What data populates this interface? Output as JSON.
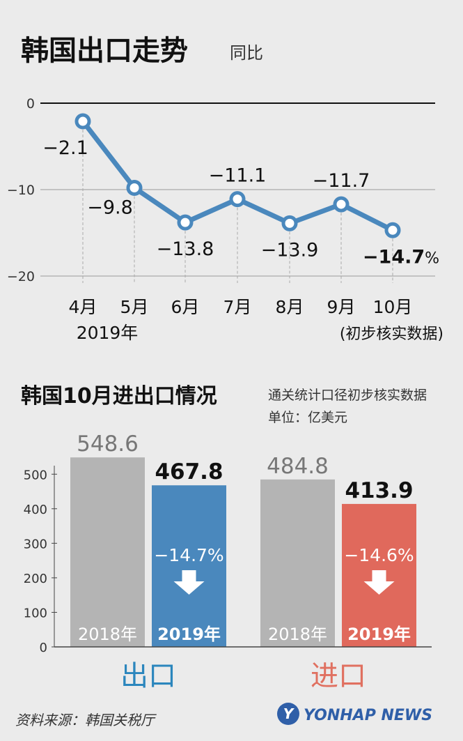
{
  "chart_data": [
    {
      "type": "line",
      "title": "韩国出口走势",
      "subtitle": "同比",
      "categories": [
        "4月",
        "5月",
        "6月",
        "7月",
        "8月",
        "9月",
        "10月"
      ],
      "year_label": "2019年",
      "note": "(初步核实数据)",
      "values": [
        -2.1,
        -9.8,
        -13.8,
        -11.1,
        -13.9,
        -11.7,
        -14.7
      ],
      "value_labels": [
        "−2.1",
        "−9.8",
        "−13.8",
        "−11.1",
        "−13.9",
        "−11.7",
        "−14.7"
      ],
      "last_suffix": "%",
      "ylim": [
        -20,
        0
      ],
      "yticks": [
        0,
        -10,
        -20
      ],
      "ytick_labels": [
        "0",
        "−10",
        "−20"
      ],
      "line_color": "#4a88bd"
    },
    {
      "type": "bar",
      "title": "韩国10月进出口情况",
      "source_note": "通关统计口径初步核实数据",
      "unit": "单位：亿美元",
      "ylim": [
        0,
        550
      ],
      "yticks": [
        0,
        100,
        200,
        300,
        400,
        500
      ],
      "groups": [
        {
          "name": "出口",
          "color": "#2b86bd",
          "bars": [
            {
              "year": "2018年",
              "value": 548.6,
              "label": "548.6",
              "color": "#b4b4b4"
            },
            {
              "year": "2019年",
              "value": 467.8,
              "label": "467.8",
              "color": "#4a88bd"
            }
          ],
          "change": "−14.7%"
        },
        {
          "name": "进口",
          "color": "#e07060",
          "bars": [
            {
              "year": "2018年",
              "value": 484.8,
              "label": "484.8",
              "color": "#b4b4b4"
            },
            {
              "year": "2019年",
              "value": 413.9,
              "label": "413.9",
              "color": "#e0695c"
            }
          ],
          "change": "−14.6%"
        }
      ]
    }
  ],
  "footer": {
    "source": "资料来源：韩国关税厅",
    "brand": "YONHAP NEWS",
    "brand_mark": "Y"
  }
}
